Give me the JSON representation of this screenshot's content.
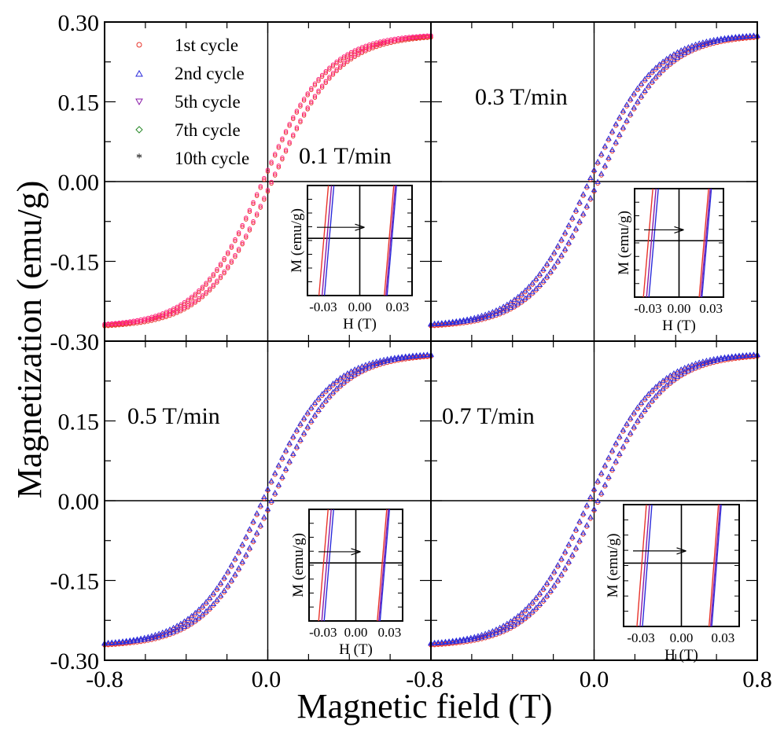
{
  "figure": {
    "xlabel": "Magnetic field (T)",
    "ylabel": "Magnetization (emu/g)"
  },
  "colors": {
    "1st cycle": "#e8332a",
    "2nd cycle": "#2a2adb",
    "5th cycle": "#8a1aa8",
    "7th cycle": "#2a8a2a",
    "10th cycle": "#ff1a7a"
  },
  "chart_data": {
    "type": "scatter",
    "xlim": [
      -0.8,
      0.8
    ],
    "ylim": [
      -0.3,
      0.3
    ],
    "x_ticks_left": [
      "-0.8",
      "0.0"
    ],
    "x_ticks_right": [
      "-0.8",
      "0.0",
      "0.8"
    ],
    "y_ticks_top": [
      "0.30",
      "0.15",
      "0.00",
      "-0.15",
      "-0.30"
    ],
    "y_ticks_bottom": [
      "0.15",
      "0.00",
      "-0.15",
      "-0.30"
    ],
    "legend": {
      "placement": "top-left of top-left panel",
      "entries": [
        "1st cycle",
        "2nd cycle",
        "5th cycle",
        "7th cycle",
        "10th cycle"
      ]
    },
    "panels": [
      {
        "label": "0.1 T/min",
        "series": [
          {
            "name": "1st cycle",
            "x": [
              -0.8,
              -0.4,
              -0.2,
              0.0,
              0.2,
              0.4,
              0.8
            ],
            "y_up": [
              -0.25,
              -0.22,
              -0.15,
              -0.02,
              0.12,
              0.2,
              0.25
            ],
            "y_down": [
              -0.25,
              -0.21,
              -0.13,
              0.02,
              0.15,
              0.21,
              0.25
            ]
          },
          {
            "name": "10th cycle",
            "x": [
              -0.8,
              -0.4,
              -0.2,
              0.0,
              0.2,
              0.4,
              0.8
            ],
            "y_up": [
              -0.25,
              -0.22,
              -0.15,
              -0.02,
              0.12,
              0.2,
              0.25
            ],
            "y_down": [
              -0.25,
              -0.21,
              -0.13,
              0.02,
              0.15,
              0.21,
              0.25
            ]
          }
        ],
        "inset": {
          "xlabel": "H (T)",
          "ylabel": "M (emu/g)",
          "x_ticks": [
            "-0.03",
            "0.00",
            "0.03"
          ]
        }
      },
      {
        "label": "0.3 T/min",
        "series": [
          {
            "name": "1st cycle",
            "x": [
              -0.8,
              -0.4,
              -0.2,
              0.0,
              0.2,
              0.4,
              0.8
            ],
            "y_up": [
              -0.23,
              -0.2,
              -0.13,
              -0.02,
              0.11,
              0.18,
              0.23
            ],
            "y_down": [
              -0.23,
              -0.19,
              -0.11,
              0.02,
              0.14,
              0.19,
              0.23
            ]
          },
          {
            "name": "2nd cycle",
            "x": [
              -0.8,
              -0.4,
              -0.2,
              0.0,
              0.2,
              0.4,
              0.8
            ],
            "y_up": [
              -0.23,
              -0.2,
              -0.13,
              -0.02,
              0.11,
              0.18,
              0.235
            ],
            "y_down": [
              -0.23,
              -0.19,
              -0.11,
              0.02,
              0.14,
              0.19,
              0.235
            ]
          }
        ],
        "inset": {
          "xlabel": "H (T)",
          "ylabel": "M (emu/g)",
          "x_ticks": [
            "-0.03",
            "0.00",
            "0.03"
          ]
        }
      },
      {
        "label": "0.5 T/min",
        "series": [
          {
            "name": "1st cycle",
            "x": [
              -0.8,
              -0.4,
              -0.2,
              0.0,
              0.2,
              0.4,
              0.8
            ],
            "y_up": [
              -0.23,
              -0.2,
              -0.13,
              -0.02,
              0.11,
              0.18,
              0.23
            ],
            "y_down": [
              -0.23,
              -0.19,
              -0.11,
              0.02,
              0.14,
              0.19,
              0.23
            ]
          },
          {
            "name": "2nd cycle",
            "x": [
              -0.8,
              -0.4,
              -0.2,
              0.0,
              0.2,
              0.4,
              0.8
            ],
            "y_up": [
              -0.23,
              -0.2,
              -0.13,
              -0.02,
              0.11,
              0.18,
              0.235
            ],
            "y_down": [
              -0.23,
              -0.19,
              -0.11,
              0.02,
              0.14,
              0.19,
              0.235
            ]
          }
        ],
        "inset": {
          "xlabel": "H (T)",
          "ylabel": "M (emu/g)",
          "x_ticks": [
            "-0.03",
            "0.00",
            "0.03"
          ]
        }
      },
      {
        "label": "0.7 T/min",
        "series": [
          {
            "name": "1st cycle",
            "x": [
              -0.8,
              -0.4,
              -0.2,
              0.0,
              0.2,
              0.4,
              0.8
            ],
            "y_up": [
              -0.23,
              -0.2,
              -0.13,
              -0.02,
              0.11,
              0.18,
              0.23
            ],
            "y_down": [
              -0.23,
              -0.19,
              -0.11,
              0.02,
              0.14,
              0.19,
              0.23
            ]
          },
          {
            "name": "2nd cycle",
            "x": [
              -0.8,
              -0.4,
              -0.2,
              0.0,
              0.2,
              0.4,
              0.8
            ],
            "y_up": [
              -0.23,
              -0.2,
              -0.13,
              -0.02,
              0.11,
              0.18,
              0.235
            ],
            "y_down": [
              -0.23,
              -0.19,
              -0.11,
              0.02,
              0.14,
              0.19,
              0.235
            ]
          }
        ],
        "inset": {
          "xlabel": "H (T)",
          "ylabel": "M (emu/g)",
          "x_ticks": [
            "-0.03",
            "0.00",
            "0.03"
          ]
        }
      }
    ]
  }
}
